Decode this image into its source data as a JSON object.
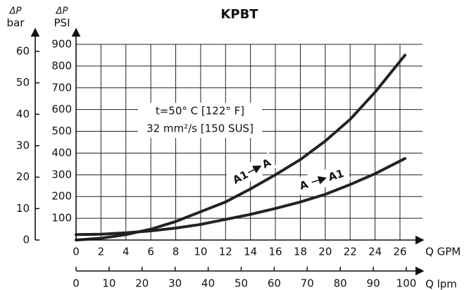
{
  "chart_data": {
    "type": "line",
    "title": "KPBT",
    "y_label_top": "ΔP",
    "y_label_unit": "PSI",
    "y_bar_label_top": "ΔP",
    "y_bar_label_unit": "bar",
    "x_label": "Q GPM",
    "x2_label": "Q lpm",
    "annotation": [
      "t=50° C [122° F]",
      "32 mm²/s [150 SUS]"
    ],
    "x": [
      0,
      2,
      4,
      6,
      8,
      10,
      12,
      14,
      16,
      18,
      20,
      22,
      24,
      26.4
    ],
    "xlim": [
      0,
      26
    ],
    "xticks": [
      0,
      2,
      4,
      6,
      8,
      10,
      12,
      14,
      16,
      18,
      20,
      22,
      24,
      26
    ],
    "x2lim": [
      0,
      100
    ],
    "x2ticks": [
      0,
      10,
      20,
      30,
      40,
      50,
      60,
      70,
      80,
      90,
      100
    ],
    "ylim": [
      0,
      900
    ],
    "yticks": [
      100,
      200,
      300,
      400,
      500,
      600,
      700,
      800,
      900
    ],
    "ybarlim": [
      0,
      60
    ],
    "ybarticks": [
      0,
      10,
      20,
      30,
      40,
      50,
      60
    ],
    "grid": true,
    "series": [
      {
        "from": "A1",
        "to": "A",
        "color": "#222222",
        "values": [
          0,
          8,
          25,
          50,
          85,
          130,
          175,
          235,
          300,
          370,
          455,
          555,
          680,
          850
        ]
      },
      {
        "from": "A",
        "to": "A1",
        "color": "#222222",
        "values": [
          25,
          27,
          33,
          42,
          55,
          72,
          95,
          118,
          145,
          175,
          210,
          255,
          305,
          375
        ]
      }
    ]
  }
}
